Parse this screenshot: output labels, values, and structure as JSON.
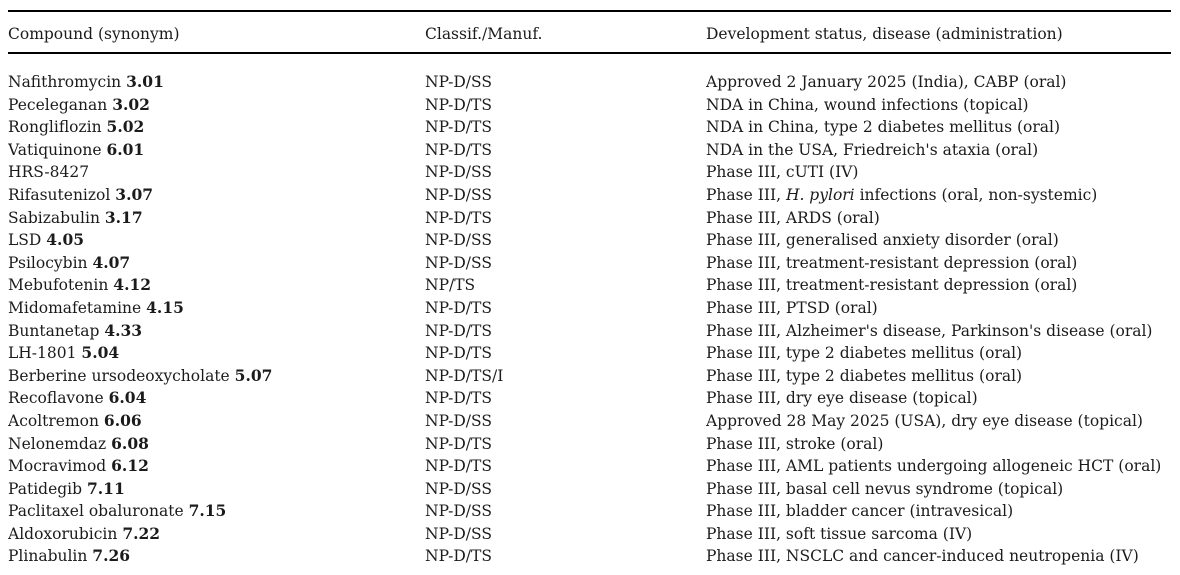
{
  "page": {
    "background": "#ffffff",
    "text_color": "#1b1b1b",
    "rule_color": "#000000"
  },
  "table": {
    "columns": [
      "Compound (synonym)",
      "Classif./Manuf.",
      "Development status, disease (administration)"
    ],
    "rows": [
      {
        "name": "Nafithromycin",
        "num": "3.01",
        "classif": "NP-D/SS",
        "status": "Approved 2 January 2025 (India), CABP (oral)"
      },
      {
        "name": "Peceleganan",
        "num": "3.02",
        "classif": "NP-D/TS",
        "status": "NDA in China, wound infections (topical)"
      },
      {
        "name": "Rongliflozin",
        "num": "5.02",
        "classif": "NP-D/TS",
        "status": "NDA in China, type 2 diabetes mellitus (oral)"
      },
      {
        "name": "Vatiquinone",
        "num": "6.01",
        "classif": "NP-D/TS",
        "status": "NDA in the USA, Friedreich's ataxia (oral)"
      },
      {
        "name": "HRS-8427",
        "num": "",
        "classif": "NP-D/SS",
        "status": "Phase III, cUTI (IV)"
      },
      {
        "name": "Rifasutenizol",
        "num": "3.07",
        "classif": "NP-D/SS",
        "status": "Phase III, *H. pylori* infections (oral, non-systemic)"
      },
      {
        "name": "Sabizabulin",
        "num": "3.17",
        "classif": "NP-D/TS",
        "status": "Phase III, ARDS (oral)"
      },
      {
        "name": "LSD",
        "num": "4.05",
        "classif": "NP-D/SS",
        "status": "Phase III, generalised anxiety disorder (oral)"
      },
      {
        "name": "Psilocybin",
        "num": "4.07",
        "classif": "NP-D/SS",
        "status": "Phase III, treatment-resistant depression (oral)"
      },
      {
        "name": "Mebufotenin",
        "num": "4.12",
        "classif": "NP/TS",
        "status": "Phase III, treatment-resistant depression (oral)"
      },
      {
        "name": "Midomafetamine",
        "num": "4.15",
        "classif": "NP-D/TS",
        "status": "Phase III, PTSD (oral)"
      },
      {
        "name": "Buntanetap",
        "num": "4.33",
        "classif": "NP-D/TS",
        "status": "Phase III, Alzheimer's disease, Parkinson's disease (oral)"
      },
      {
        "name": "LH-1801",
        "num": "5.04",
        "classif": "NP-D/TS",
        "status": "Phase III, type 2 diabetes mellitus (oral)"
      },
      {
        "name": "Berberine ursodeoxycholate",
        "num": "5.07",
        "classif": "NP-D/TS/I",
        "status": "Phase III, type 2 diabetes mellitus (oral)"
      },
      {
        "name": "Recoflavone",
        "num": "6.04",
        "classif": "NP-D/TS",
        "status": "Phase III, dry eye disease (topical)"
      },
      {
        "name": "Acoltremon",
        "num": "6.06",
        "classif": "NP-D/SS",
        "status": "Approved 28 May 2025 (USA), dry eye disease (topical)"
      },
      {
        "name": "Nelonemdaz",
        "num": "6.08",
        "classif": "NP-D/TS",
        "status": "Phase III, stroke (oral)"
      },
      {
        "name": "Mocravimod",
        "num": "6.12",
        "classif": "NP-D/TS",
        "status": "Phase III, AML patients undergoing allogeneic HCT (oral)"
      },
      {
        "name": "Patidegib",
        "num": "7.11",
        "classif": "NP-D/SS",
        "status": "Phase III, basal cell nevus syndrome (topical)"
      },
      {
        "name": "Paclitaxel obaluronate",
        "num": "7.15",
        "classif": "NP-D/SS",
        "status": "Phase III, bladder cancer (intravesical)"
      },
      {
        "name": "Aldoxorubicin",
        "num": "7.22",
        "classif": "NP-D/SS",
        "status": "Phase III, soft tissue sarcoma (IV)"
      },
      {
        "name": "Plinabulin",
        "num": "7.26",
        "classif": "NP-D/TS",
        "status": "Phase III, NSCLC and cancer-induced neutropenia (IV)"
      }
    ]
  }
}
